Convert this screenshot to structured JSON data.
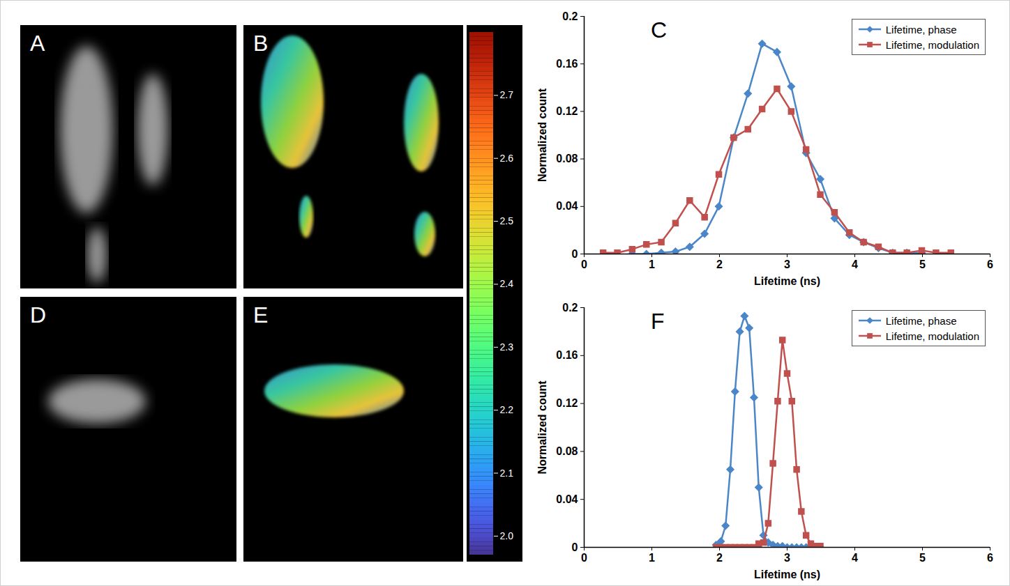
{
  "figure": {
    "image_panels": [
      "A",
      "B",
      "D",
      "E"
    ],
    "color_bar": {
      "range": [
        1.97,
        2.8
      ],
      "ticks": [
        {
          "value": 2.0,
          "label": "2.0"
        },
        2.1,
        2.2,
        2.3,
        2.4,
        2.5,
        2.6,
        2.7
      ]
    }
  },
  "chart_data": [
    {
      "type": "line",
      "panel_label": "C",
      "x_label": "Lifetime (ns)",
      "y_label": "Normalized count",
      "x": [
        0.28,
        0.49,
        0.71,
        0.92,
        1.14,
        1.35,
        1.56,
        1.78,
        1.99,
        2.21,
        2.42,
        2.63,
        2.85,
        3.06,
        3.28,
        3.49,
        3.7,
        3.92,
        4.13,
        4.35,
        4.56,
        4.77,
        4.99,
        5.2,
        5.42
      ],
      "series": [
        {
          "name": "Lifetime, phase",
          "color": "#4a86c8",
          "marker": "diamond",
          "values": [
            null,
            null,
            0,
            0,
            0.001,
            0.002,
            0.006,
            0.017,
            0.04,
            0.098,
            0.135,
            0.177,
            0.17,
            0.141,
            0.085,
            0.063,
            0.03,
            0.016,
            0.01,
            0.005,
            0.001,
            0.001,
            0.001,
            null,
            null
          ]
        },
        {
          "name": "Lifetime, modulation",
          "color": "#c0504d",
          "marker": "square",
          "values": [
            0.001,
            0.001,
            0.004,
            0.008,
            0.01,
            0.026,
            0.045,
            0.031,
            0.067,
            0.098,
            0.105,
            0.122,
            0.139,
            0.12,
            0.088,
            0.05,
            0.035,
            0.018,
            0.01,
            0.006,
            0.001,
            0.001,
            0.003,
            0.001,
            0.001
          ]
        }
      ],
      "xlim": [
        0,
        6
      ],
      "xticks": [
        0,
        1,
        2,
        3,
        4,
        5,
        6
      ],
      "ylim": [
        0,
        0.2
      ],
      "yticks": [
        0,
        0.04,
        0.08,
        0.12,
        0.16,
        0.2
      ],
      "legend": "top-right",
      "grid": false
    },
    {
      "type": "line",
      "panel_label": "F",
      "x_label": "Lifetime (ns)",
      "y_label": "Normalized count",
      "x": [
        1.95,
        2.02,
        2.09,
        2.16,
        2.23,
        2.3,
        2.37,
        2.44,
        2.51,
        2.58,
        2.65,
        2.72,
        2.79,
        2.86,
        2.93,
        3.0,
        3.07,
        3.14,
        3.21,
        3.28,
        3.35,
        3.42,
        3.49
      ],
      "series": [
        {
          "name": "Lifetime, phase",
          "color": "#4a86c8",
          "marker": "diamond",
          "values": [
            0.002,
            0.005,
            0.018,
            0.065,
            0.13,
            0.18,
            0.193,
            0.183,
            0.125,
            0.05,
            0.01,
            0.004,
            0.002,
            0.001,
            0.001,
            0,
            0,
            0,
            0,
            0,
            0,
            0,
            0
          ]
        },
        {
          "name": "Lifetime, modulation",
          "color": "#c0504d",
          "marker": "square",
          "values": [
            0,
            0,
            0,
            0,
            0,
            0,
            0,
            0,
            0,
            0.003,
            0.004,
            0.02,
            0.07,
            0.122,
            0.173,
            0.145,
            0.122,
            0.065,
            0.03,
            0.01,
            0.003,
            0.001,
            0.001
          ]
        }
      ],
      "xlim": [
        0,
        6
      ],
      "xticks": [
        0,
        1,
        2,
        3,
        4,
        5,
        6
      ],
      "ylim": [
        0,
        0.2
      ],
      "yticks": [
        0,
        0.04,
        0.08,
        0.12,
        0.16,
        0.2
      ],
      "legend": "top-right",
      "grid": false
    }
  ]
}
